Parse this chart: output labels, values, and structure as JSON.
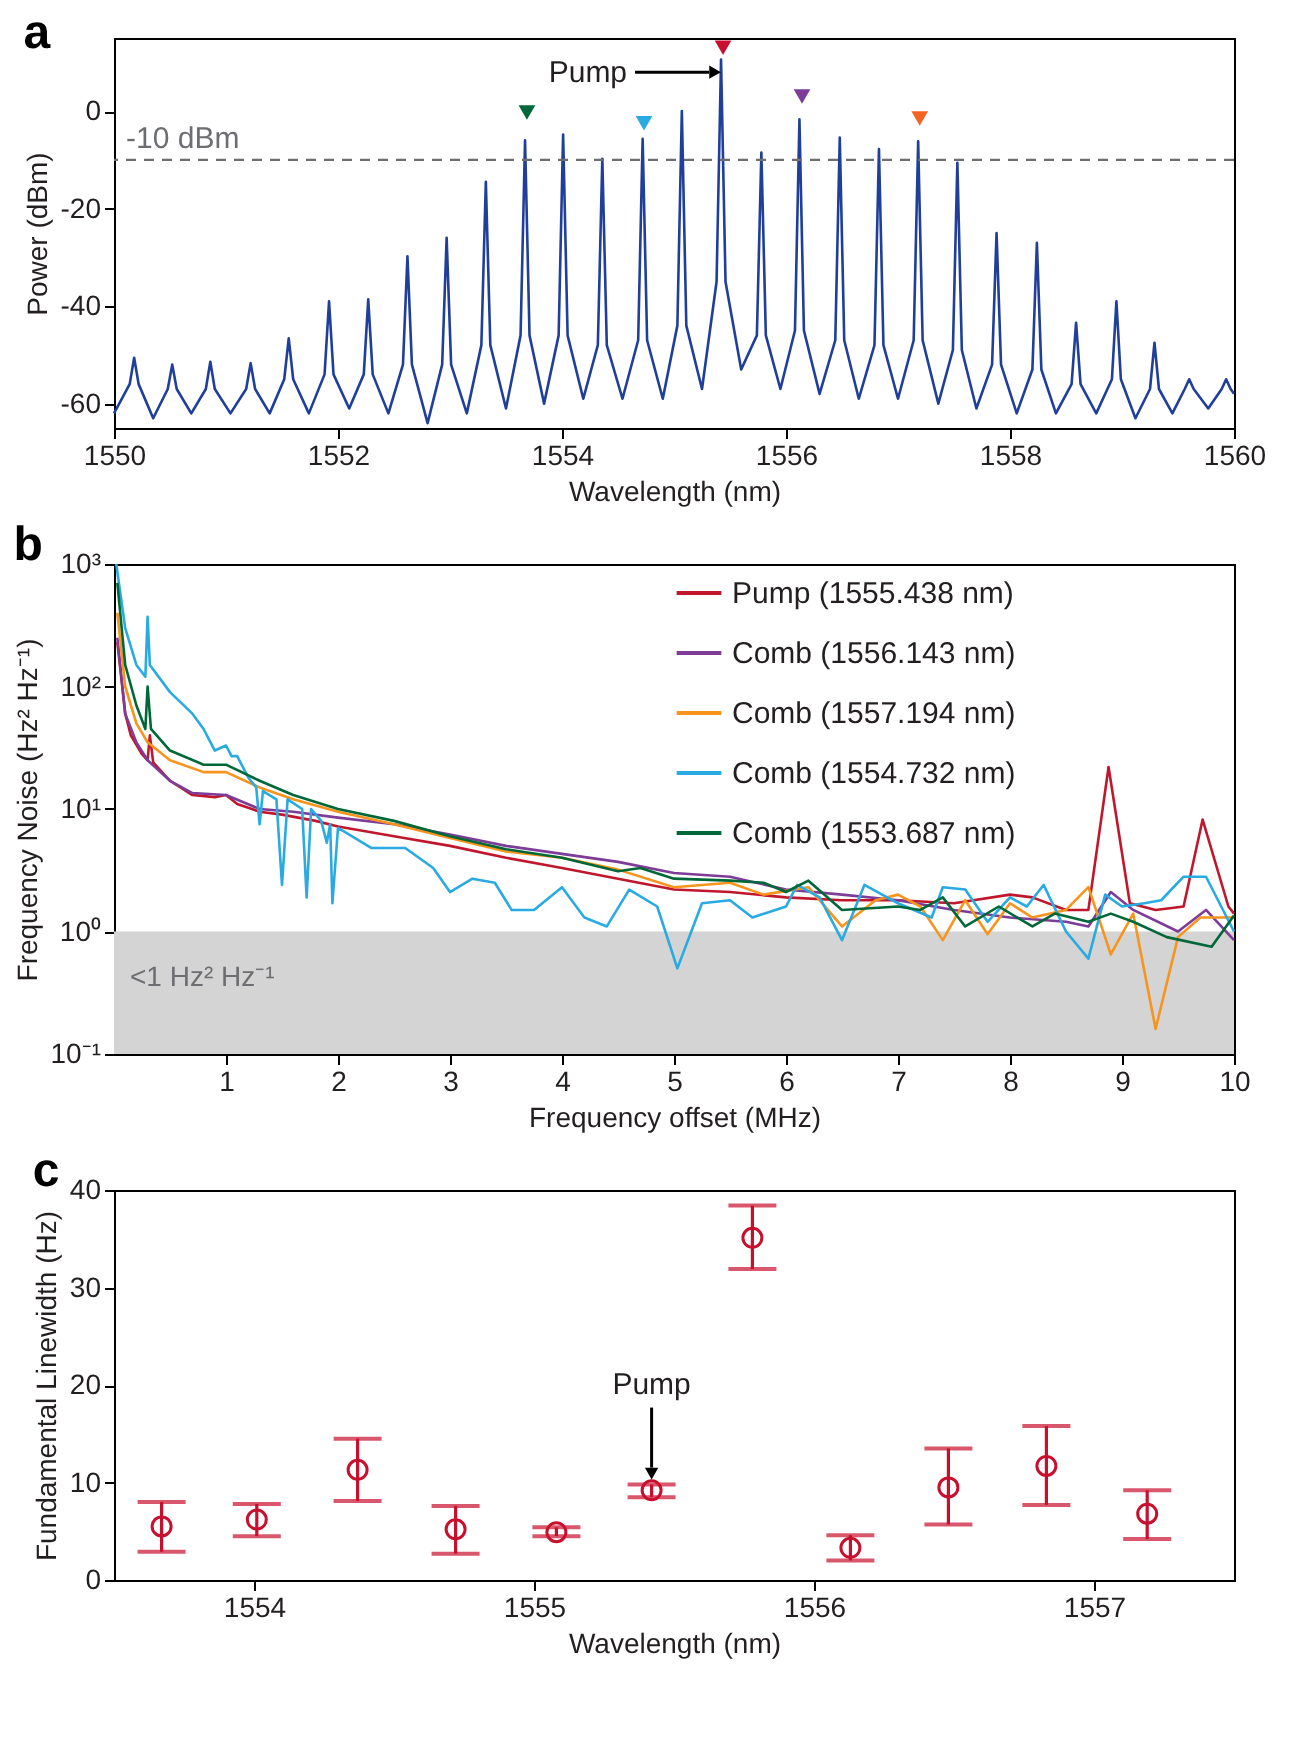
{
  "chart_data": [
    {
      "type": "line",
      "title": "a",
      "xlabel": "Wavelength (nm)",
      "ylabel": "Power (dBm)",
      "xlim": [
        1550,
        1560
      ],
      "xticks": [
        1550,
        1552,
        1554,
        1556,
        1558,
        1560
      ],
      "ylim": [
        -65,
        15
      ],
      "yticks": [
        -60,
        -40,
        -20,
        0
      ],
      "series": [
        {
          "type": "line",
          "color": "#1f3f9a",
          "x": [
            1550.0,
            1550.14,
            1550.18,
            1550.22,
            1550.35,
            1550.48,
            1550.52,
            1550.56,
            1550.69,
            1550.82,
            1550.86,
            1550.9,
            1551.04,
            1551.18,
            1551.22,
            1551.26,
            1551.39,
            1551.52,
            1551.56,
            1551.6,
            1551.74,
            1551.88,
            1551.92,
            1551.96,
            1552.1,
            1552.23,
            1552.27,
            1552.31,
            1552.45,
            1552.58,
            1552.62,
            1552.66,
            1552.8,
            1552.93,
            1552.97,
            1553.01,
            1553.15,
            1553.28,
            1553.32,
            1553.36,
            1553.5,
            1553.63,
            1553.67,
            1553.71,
            1553.84,
            1553.97,
            1554.01,
            1554.05,
            1554.19,
            1554.32,
            1554.36,
            1554.4,
            1554.54,
            1554.68,
            1554.72,
            1554.76,
            1554.9,
            1555.03,
            1555.07,
            1555.11,
            1555.25,
            1555.38,
            1555.42,
            1555.46,
            1555.6,
            1555.74,
            1555.78,
            1555.82,
            1555.95,
            1556.08,
            1556.12,
            1556.16,
            1556.3,
            1556.44,
            1556.48,
            1556.52,
            1556.65,
            1556.79,
            1556.83,
            1556.87,
            1557.0,
            1557.14,
            1557.18,
            1557.22,
            1557.36,
            1557.49,
            1557.53,
            1557.57,
            1557.7,
            1557.84,
            1557.88,
            1557.92,
            1558.06,
            1558.2,
            1558.24,
            1558.28,
            1558.41,
            1558.55,
            1558.59,
            1558.63,
            1558.77,
            1558.91,
            1558.95,
            1558.99,
            1559.12,
            1559.25,
            1559.29,
            1559.33,
            1559.45,
            1559.56,
            1559.6,
            1559.64,
            1559.77,
            1559.89,
            1559.93,
            1559.97,
            1560.0
          ],
          "values": [
            -62,
            -56,
            -50.6,
            -56,
            -63,
            -57,
            -52,
            -57,
            -62,
            -57,
            -51.4,
            -57,
            -62,
            -57,
            -51.7,
            -57,
            -62,
            -55,
            -46.6,
            -55,
            -62,
            -54,
            -39,
            -54,
            -61,
            -54,
            -38.6,
            -54,
            -62,
            -52,
            -29.8,
            -52,
            -64,
            -52,
            -26,
            -52,
            -62,
            -48,
            -14.5,
            -48,
            -61,
            -46,
            -6,
            -46,
            -60,
            -46,
            -4.8,
            -46,
            -59,
            -48,
            -9.8,
            -48,
            -59,
            -47,
            -5.7,
            -47,
            -59,
            -44,
            0,
            -44,
            -57,
            -35,
            10.6,
            -35,
            -53,
            -46,
            -8.5,
            -46,
            -57,
            -45,
            -1.7,
            -45,
            -58,
            -47,
            -5.4,
            -47,
            -59,
            -48,
            -7.8,
            -48,
            -59,
            -47,
            -6.2,
            -47,
            -60,
            -49,
            -10.6,
            -49,
            -61,
            -52,
            -25,
            -52,
            -62,
            -53,
            -27,
            -53,
            -62,
            -56,
            -43.4,
            -56,
            -62,
            -55,
            -39,
            -55,
            -63,
            -57,
            -47.5,
            -57,
            -62,
            -57,
            -55,
            -57,
            -61,
            -57,
            -55,
            -57,
            -58
          ]
        },
        {
          "type": "scatter",
          "marker": "triangle",
          "x": [
            1553.687,
            1554.732,
            1555.438,
            1556.143,
            1557.194
          ],
          "values": [
            -0.3,
            -2.5,
            13,
            3,
            -1.5
          ],
          "colors": [
            "#006838",
            "#29abe2",
            "#c8102e",
            "#7d3c98",
            "#f26522"
          ]
        }
      ],
      "ref_lines": [
        {
          "axis": "y",
          "value": -10,
          "label": "-10 dBm",
          "color": "#6d6e71",
          "line_style": "dashed"
        }
      ],
      "annotations": [
        {
          "text": "Pump",
          "x": 1555.438,
          "y": 8
        }
      ]
    },
    {
      "type": "line",
      "title": "b",
      "xlabel": "Frequency offset (MHz)",
      "ylabel": "Frequency Noise (Hz² Hz⁻¹)",
      "log": "y",
      "xlim": [
        0,
        10
      ],
      "xticks": [
        1,
        2,
        3,
        4,
        5,
        6,
        7,
        8,
        9,
        10
      ],
      "ylim": [
        0.1,
        1000
      ],
      "yticks": [
        {
          "value": 0.1,
          "label": "10⁻¹"
        },
        {
          "value": 1,
          "label": "10⁰"
        },
        {
          "value": 10,
          "label": "10¹"
        },
        {
          "value": 100,
          "label": "10²"
        },
        {
          "value": 1000,
          "label": "10³"
        }
      ],
      "legend": "top right",
      "bands": [
        {
          "axis": "y",
          "from": 0.1,
          "to": 1,
          "label": "<1 Hz² Hz⁻¹",
          "color": "#d4d4d4"
        }
      ],
      "series": [
        {
          "name": "Pump (1555.438 nm)",
          "color": "#c0172d",
          "x": [
            0.03,
            0.1,
            0.15,
            0.25,
            0.3,
            0.32,
            0.35,
            0.5,
            0.7,
            0.9,
            1.0,
            1.1,
            1.3,
            1.5,
            1.8,
            2,
            2.5,
            3,
            3.5,
            4,
            4.5,
            5,
            5.5,
            6,
            6.5,
            7,
            7.5,
            8,
            8.2,
            8.5,
            8.7,
            8.88,
            9.07,
            9.3,
            9.55,
            9.72,
            9.95,
            10
          ],
          "values": [
            230,
            60,
            40,
            28,
            25,
            40,
            24,
            17,
            13,
            12.5,
            13,
            11,
            9.5,
            9,
            8,
            7.2,
            6,
            5,
            4,
            3.3,
            2.7,
            2.2,
            2.1,
            1.9,
            1.8,
            1.8,
            1.7,
            2.0,
            1.9,
            1.5,
            1.5,
            22,
            1.7,
            1.5,
            1.6,
            8.2,
            1.6,
            1.4
          ]
        },
        {
          "name": "Comb (1556.143 nm)",
          "color": "#7d3c98",
          "x": [
            0.03,
            0.1,
            0.2,
            0.3,
            0.5,
            0.7,
            1.0,
            1.3,
            1.6,
            2,
            2.5,
            3,
            3.5,
            4,
            4.5,
            5,
            5.5,
            6,
            6.5,
            7,
            7.5,
            8,
            8.5,
            8.7,
            8.9,
            9.1,
            9.5,
            9.75,
            10
          ],
          "values": [
            250,
            60,
            35,
            25,
            17,
            13.5,
            13,
            10,
            9.5,
            8.5,
            7.5,
            6.2,
            5,
            4.3,
            3.7,
            3,
            2.8,
            2.2,
            2,
            1.8,
            1.5,
            1.3,
            1.2,
            1.1,
            2.1,
            1.5,
            1.0,
            1.5,
            0.85
          ]
        },
        {
          "name": "Comb (1557.194 nm)",
          "color": "#f7941d",
          "x": [
            0.03,
            0.1,
            0.2,
            0.3,
            0.5,
            0.8,
            1.0,
            1.3,
            1.6,
            2,
            2.5,
            3,
            3.5,
            4,
            4.5,
            5,
            5.5,
            5.8,
            6.2,
            6.5,
            6.8,
            7,
            7.2,
            7.4,
            7.6,
            7.8,
            8,
            8.2,
            8.5,
            8.7,
            8.9,
            9.1,
            9.3,
            9.5,
            9.7,
            10
          ],
          "values": [
            400,
            100,
            50,
            35,
            25,
            20,
            20,
            15,
            12,
            9.5,
            7.5,
            5.8,
            4.5,
            4,
            3.2,
            2.3,
            2.5,
            2,
            2.3,
            1.1,
            1.8,
            2.0,
            1.6,
            0.85,
            1.8,
            0.95,
            1.7,
            1.3,
            1.5,
            2.3,
            0.65,
            1.4,
            0.16,
            0.9,
            1.3,
            1.3
          ]
        },
        {
          "name": "Comb (1554.732 nm)",
          "color": "#29abe2",
          "x": [
            0.02,
            0.1,
            0.2,
            0.28,
            0.3,
            0.32,
            0.5,
            0.7,
            0.8,
            0.9,
            1.0,
            1.05,
            1.1,
            1.2,
            1.27,
            1.3,
            1.33,
            1.45,
            1.5,
            1.55,
            1.68,
            1.72,
            1.76,
            1.85,
            1.9,
            1.93,
            1.95,
            2.0,
            2.3,
            2.6,
            2.85,
            3.0,
            3.2,
            3.4,
            3.55,
            3.75,
            4.0,
            4.2,
            4.4,
            4.6,
            4.85,
            5.03,
            5.25,
            5.5,
            5.7,
            6.0,
            6.1,
            6.3,
            6.5,
            6.7,
            7.0,
            7.3,
            7.4,
            7.6,
            7.8,
            8.0,
            8.15,
            8.3,
            8.5,
            8.7,
            8.85,
            9.0,
            9.2,
            9.35,
            9.55,
            9.75,
            10
          ],
          "values": [
            1000,
            300,
            150,
            120,
            370,
            150,
            90,
            60,
            45,
            30,
            33,
            27,
            27,
            18,
            15,
            7.5,
            14,
            12,
            2.4,
            12,
            10,
            1.9,
            10,
            8,
            5.3,
            7.5,
            1.7,
            7,
            4.8,
            4.8,
            3.3,
            2.1,
            2.7,
            2.5,
            1.5,
            1.5,
            2.3,
            1.3,
            1.1,
            2.2,
            1.6,
            0.5,
            1.7,
            1.8,
            1.3,
            1.6,
            2.4,
            1.9,
            0.85,
            2.4,
            1.7,
            1.3,
            2.3,
            2.2,
            1.2,
            1.9,
            1.6,
            2.4,
            1.0,
            0.6,
            2.0,
            1.6,
            1.7,
            1.8,
            2.8,
            2.8,
            1.0
          ]
        },
        {
          "name": "Comb (1553.687 nm)",
          "color": "#006838",
          "x": [
            0.03,
            0.1,
            0.2,
            0.28,
            0.3,
            0.33,
            0.5,
            0.8,
            1.0,
            1.3,
            1.6,
            2,
            2.5,
            3,
            3.5,
            4,
            4.5,
            4.7,
            5,
            5.5,
            5.8,
            6,
            6.2,
            6.5,
            7,
            7.2,
            7.4,
            7.6,
            7.9,
            8.2,
            8.4,
            8.7,
            8.9,
            9.1,
            9.4,
            9.8,
            10
          ],
          "values": [
            700,
            150,
            70,
            45,
            100,
            45,
            30,
            23,
            23,
            17,
            13,
            10,
            8,
            6,
            4.7,
            4,
            3.1,
            3.3,
            2.7,
            2.6,
            2.5,
            2.1,
            2.6,
            1.5,
            1.6,
            1.5,
            1.9,
            1.1,
            1.6,
            1.1,
            1.4,
            1.2,
            1.4,
            1.2,
            0.9,
            0.75,
            1.35
          ]
        }
      ]
    },
    {
      "type": "scatter",
      "title": "c",
      "xlabel": "Wavelength (nm)",
      "ylabel": "Fundamental Linewidth (Hz)",
      "xlim": [
        1553.5,
        1557.5
      ],
      "xticks": [
        1554,
        1555,
        1556,
        1557
      ],
      "ylim": [
        0,
        40
      ],
      "yticks": [
        0,
        10,
        20,
        30,
        40
      ],
      "marker": "circle",
      "color": "#c8102e",
      "x": [
        1553.67,
        1554.01,
        1554.37,
        1554.72,
        1555.08,
        1555.42,
        1555.78,
        1556.13,
        1556.48,
        1556.83,
        1557.19
      ],
      "values": [
        5.5,
        6.2,
        11.3,
        5.2,
        4.9,
        9.2,
        35.1,
        3.3,
        9.5,
        11.7,
        6.8
      ],
      "errors": [
        [
          2.9,
          8.0
        ],
        [
          4.5,
          7.8
        ],
        [
          8.1,
          14.5
        ],
        [
          2.7,
          7.6
        ],
        [
          4.5,
          5.4
        ],
        [
          8.5,
          9.8
        ],
        [
          31.9,
          38.4
        ],
        [
          2.0,
          4.6
        ],
        [
          5.7,
          13.5
        ],
        [
          7.7,
          15.8
        ],
        [
          4.2,
          9.2
        ]
      ],
      "annotations": [
        {
          "text": "Pump",
          "x": 1555.42,
          "y": 10.3
        }
      ]
    }
  ]
}
